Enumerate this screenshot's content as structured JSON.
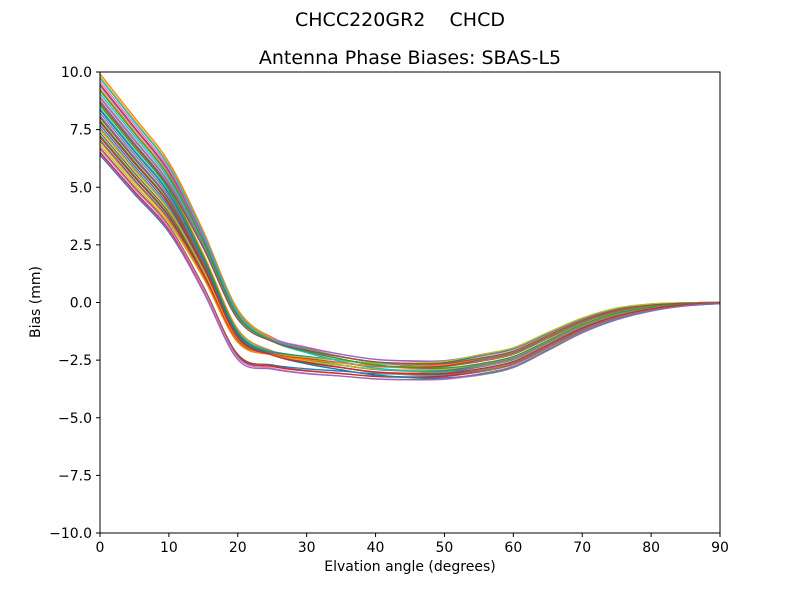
{
  "chart_data": {
    "type": "line",
    "suptitle": "CHCC220GR2    CHCD",
    "title": "Antenna Phase Biases: SBAS-L5",
    "xlabel": "Elvation angle (degrees)",
    "ylabel": "Bias (mm)",
    "xlim": [
      0,
      90
    ],
    "ylim": [
      -10.0,
      10.0
    ],
    "xticks": [
      0,
      10,
      20,
      30,
      40,
      50,
      60,
      70,
      80,
      90
    ],
    "yticks": [
      10.0,
      7.5,
      5.0,
      2.5,
      0.0,
      -2.5,
      -5.0,
      -7.5,
      -10.0
    ],
    "grid": false,
    "legend": null,
    "n_series": 36,
    "palette": [
      "#1f77b4",
      "#ff7f0e",
      "#2ca02c",
      "#d62728",
      "#9467bd",
      "#8c564b",
      "#e377c2",
      "#7f7f7f",
      "#bcbd22",
      "#17becf"
    ],
    "axis_color": "#000000",
    "background_color": "#ffffff",
    "ensemble": {
      "description": "bundle of antenna phase bias curves; mean bias (mm) and half-spread of bundle vs elevation angle (deg)",
      "x": [
        0,
        5,
        10,
        15,
        20,
        25,
        30,
        35,
        40,
        45,
        50,
        55,
        60,
        65,
        70,
        75,
        80,
        85,
        90
      ],
      "mean": [
        8.2,
        6.4,
        4.6,
        1.9,
        -1.2,
        -2.05,
        -2.4,
        -2.65,
        -2.85,
        -2.92,
        -2.92,
        -2.72,
        -2.4,
        -1.7,
        -1.0,
        -0.5,
        -0.22,
        -0.08,
        -0.02
      ],
      "halfwidth": [
        1.8,
        1.7,
        1.55,
        1.5,
        1.35,
        0.9,
        0.75,
        0.6,
        0.52,
        0.48,
        0.45,
        0.45,
        0.44,
        0.4,
        0.33,
        0.26,
        0.16,
        0.07,
        0.03
      ]
    }
  }
}
